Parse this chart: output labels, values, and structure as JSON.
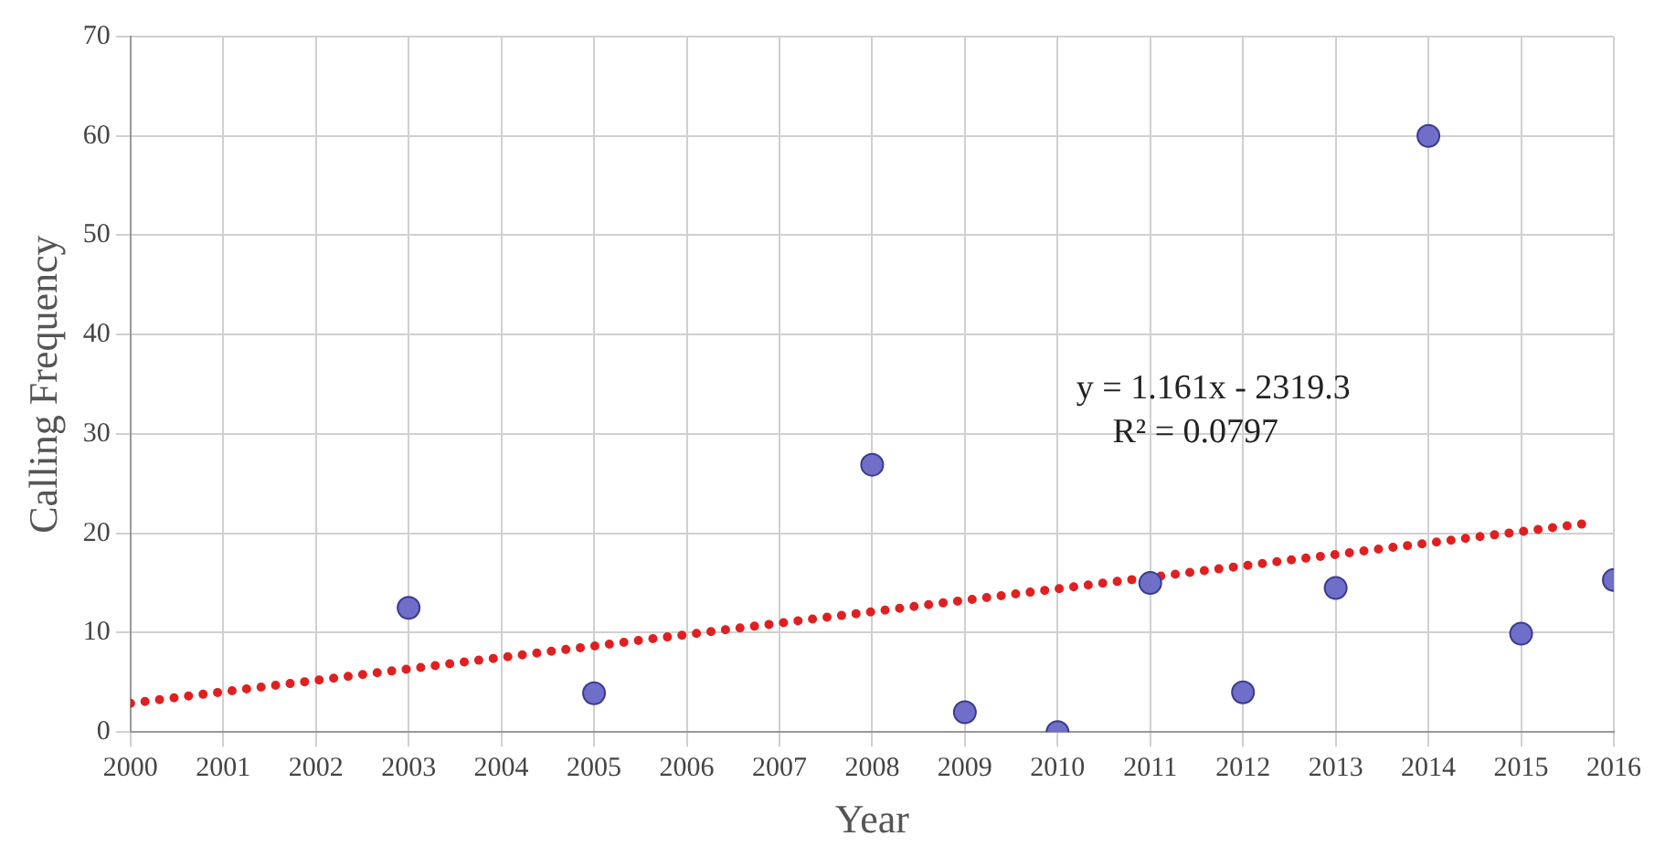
{
  "chart_data": {
    "type": "scatter",
    "xlabel": "Year",
    "ylabel": "Calling Frequency",
    "xlim": [
      2000,
      2016
    ],
    "xticks": [
      2000,
      2001,
      2002,
      2003,
      2004,
      2005,
      2006,
      2007,
      2008,
      2009,
      2010,
      2011,
      2012,
      2013,
      2014,
      2015,
      2016
    ],
    "ylim": [
      0,
      70
    ],
    "yticks": [
      0,
      10,
      20,
      30,
      40,
      50,
      60,
      70
    ],
    "grid": true,
    "legend": false,
    "marker": "circle",
    "series": [
      {
        "color": "#6f6fc9",
        "x": [
          2003,
          2005,
          2008,
          2009,
          2010,
          2011,
          2012,
          2013,
          2014,
          2015,
          2016
        ],
        "values": [
          12.5,
          3.9,
          26.9,
          2,
          0,
          15,
          4,
          14.5,
          60,
          9.9,
          15.3
        ]
      },
      {
        "type": "line",
        "color": "#e02020",
        "marker": "none",
        "line_style": "dotted",
        "x": [
          2000,
          2015.8
        ],
        "values": [
          2.9,
          21.1
        ]
      }
    ],
    "annotations": [
      "y = 1.161x - 2319.3",
      "R² = 0.0797"
    ]
  }
}
